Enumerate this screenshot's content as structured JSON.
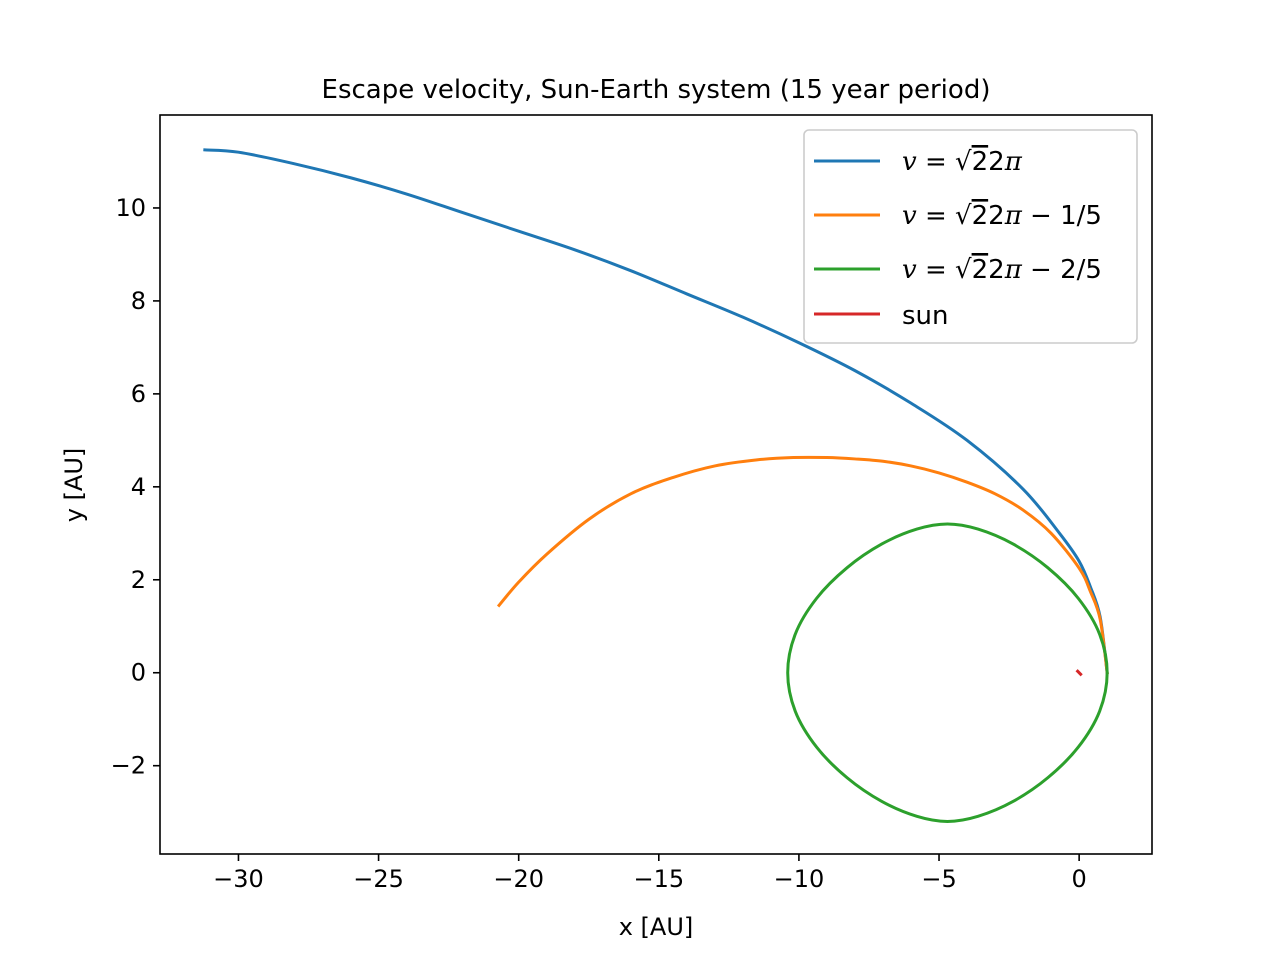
{
  "chart_data": {
    "type": "line",
    "title": "Escape velocity, Sun-Earth system (15 year period)",
    "xlabel": "x [AU]",
    "ylabel": "y [AU]",
    "xlim": [
      -32.8,
      2.6
    ],
    "ylim": [
      -3.9,
      12.0
    ],
    "xticks": [
      -30,
      -25,
      -20,
      -15,
      -10,
      -5,
      0
    ],
    "xtick_labels": [
      "−30",
      "−25",
      "−20",
      "−15",
      "−10",
      "−5",
      "0"
    ],
    "yticks": [
      -2,
      0,
      2,
      4,
      6,
      8,
      10
    ],
    "ytick_labels": [
      "−2",
      "0",
      "2",
      "4",
      "6",
      "8",
      "10"
    ],
    "grid": false,
    "legend_position": "top-right",
    "series": [
      {
        "name": "v = √2 2π",
        "color": "#1f77b4",
        "x": [
          1.0,
          0.75,
          0.4,
          0.0,
          -0.7,
          -2.0,
          -4.0,
          -6.0,
          -8.0,
          -10.0,
          -12.0,
          -14.0,
          -16.0,
          -18.0,
          -20.0,
          -22.0,
          -24.0,
          -26.0,
          -28.0,
          -30.0,
          -31.2
        ],
        "y": [
          0.0,
          1.2,
          1.85,
          2.4,
          3.0,
          3.95,
          5.0,
          5.8,
          6.5,
          7.1,
          7.65,
          8.15,
          8.65,
          9.1,
          9.5,
          9.9,
          10.3,
          10.65,
          10.95,
          11.2,
          11.25
        ]
      },
      {
        "name": "v = √2 2π − 1/5",
        "color": "#ff7f0e",
        "x": [
          1.0,
          0.75,
          0.4,
          0.0,
          -1.0,
          -2.0,
          -3.0,
          -4.0,
          -5.0,
          -6.0,
          -7.0,
          -8.0,
          -9.0,
          -10.2,
          -11.5,
          -13.0,
          -14.5,
          -16.0,
          -17.5,
          -19.0,
          -20.0,
          -20.7
        ],
        "y": [
          0.0,
          1.15,
          1.75,
          2.25,
          3.0,
          3.5,
          3.85,
          4.1,
          4.3,
          4.45,
          4.55,
          4.6,
          4.63,
          4.63,
          4.58,
          4.45,
          4.2,
          3.85,
          3.3,
          2.55,
          1.95,
          1.45
        ]
      },
      {
        "name": "v = √2 2π − 2/5",
        "color": "#2ca02c",
        "closed": true,
        "x": [
          1.0,
          0.73,
          -0.03,
          -1.12,
          -2.36,
          -3.61,
          -4.7,
          -5.79,
          -7.04,
          -8.28,
          -9.37,
          -10.13,
          -10.4,
          -10.13,
          -9.37,
          -8.28,
          -7.04,
          -5.79,
          -4.7,
          -3.61,
          -2.36,
          -1.12,
          -0.03,
          0.73
        ],
        "y": [
          0.0,
          0.83,
          1.6,
          2.26,
          2.77,
          3.09,
          3.2,
          3.09,
          2.77,
          2.26,
          1.6,
          0.83,
          0.0,
          -0.83,
          -1.6,
          -2.26,
          -2.77,
          -3.09,
          -3.2,
          -3.09,
          -2.77,
          -2.26,
          -1.6,
          -0.83
        ]
      },
      {
        "name": "sun",
        "color": "#d62728",
        "x": [
          0.0,
          0.0
        ],
        "y": [
          0.0,
          0.0
        ]
      }
    ]
  }
}
